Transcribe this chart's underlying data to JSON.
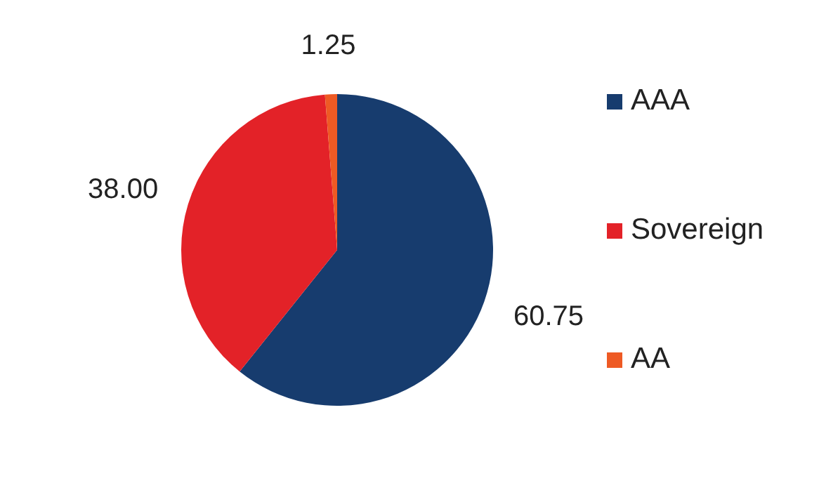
{
  "chart_data": {
    "type": "pie",
    "categories": [
      "AAA",
      "Sovereign",
      "AA"
    ],
    "values": [
      60.75,
      38,
      1.25
    ],
    "colors": [
      "#173c6e",
      "#e32228",
      "#ee5a24"
    ],
    "value_labels": [
      "60.75",
      "38.00",
      "1.25"
    ],
    "legend": "right"
  }
}
